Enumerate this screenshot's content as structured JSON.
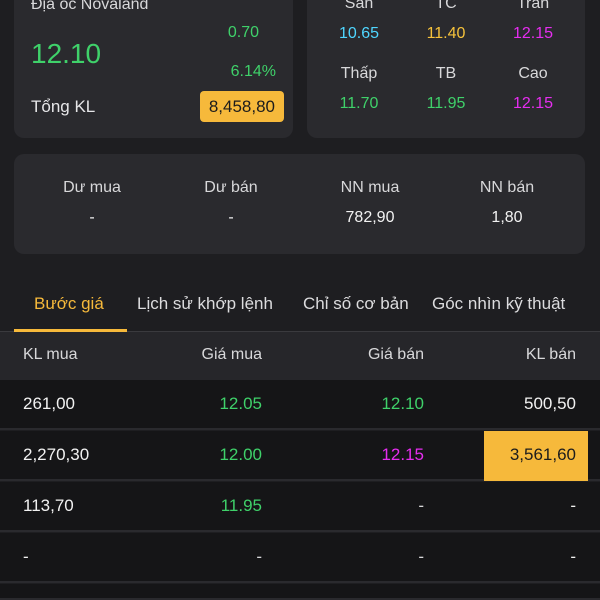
{
  "stock": {
    "company_name": "Địa ốc Novaland",
    "price": "12.10",
    "change": "0.70",
    "change_pct": "6.14%",
    "volume_label": "Tổng KL",
    "volume_value": "8,458,80"
  },
  "ref_prices": [
    {
      "label": "Sàn",
      "value": "10.65",
      "color": "#4fd6ff"
    },
    {
      "label": "TC",
      "value": "11.40",
      "color": "#f6c23b"
    },
    {
      "label": "Trần",
      "value": "12.15",
      "color": "#e62df0"
    },
    {
      "label": "Thấp",
      "value": "11.70",
      "color": "#3fd16a"
    },
    {
      "label": "TB",
      "value": "11.95",
      "color": "#3fd16a"
    },
    {
      "label": "Cao",
      "value": "12.15",
      "color": "#e62df0"
    }
  ],
  "flows": [
    {
      "label": "Dư mua",
      "value": "-"
    },
    {
      "label": "Dư bán",
      "value": "-"
    },
    {
      "label": "NN mua",
      "value": "782,90"
    },
    {
      "label": "NN bán",
      "value": "1,80"
    }
  ],
  "tabs": [
    {
      "label": "Bước giá",
      "active": true
    },
    {
      "label": "Lịch sử khớp lệnh",
      "active": false
    },
    {
      "label": "Chỉ số cơ bản",
      "active": false
    },
    {
      "label": "Góc nhìn kỹ thuật",
      "active": false
    }
  ],
  "table": {
    "headers": [
      "KL mua",
      "Giá mua",
      "Giá bán",
      "KL bán"
    ],
    "rows": [
      {
        "bid_vol": "261,00",
        "bid_price": "12.05",
        "ask_price": "12.10",
        "ask_vol": "500,50"
      },
      {
        "bid_vol": "2,270,30",
        "bid_price": "12.00",
        "ask_price": "12.15",
        "ask_vol": "3,561,60"
      },
      {
        "bid_vol": "113,70",
        "bid_price": "11.95",
        "ask_price": "-",
        "ask_vol": "-"
      },
      {
        "bid_vol": "-",
        "bid_price": "-",
        "ask_price": "-",
        "ask_vol": "-"
      }
    ]
  },
  "colors": {
    "up": "#3fd16a",
    "ceiling": "#e62df0",
    "floor": "#4fd6ff",
    "reference": "#f6c23b",
    "accent": "#f6b93b"
  }
}
